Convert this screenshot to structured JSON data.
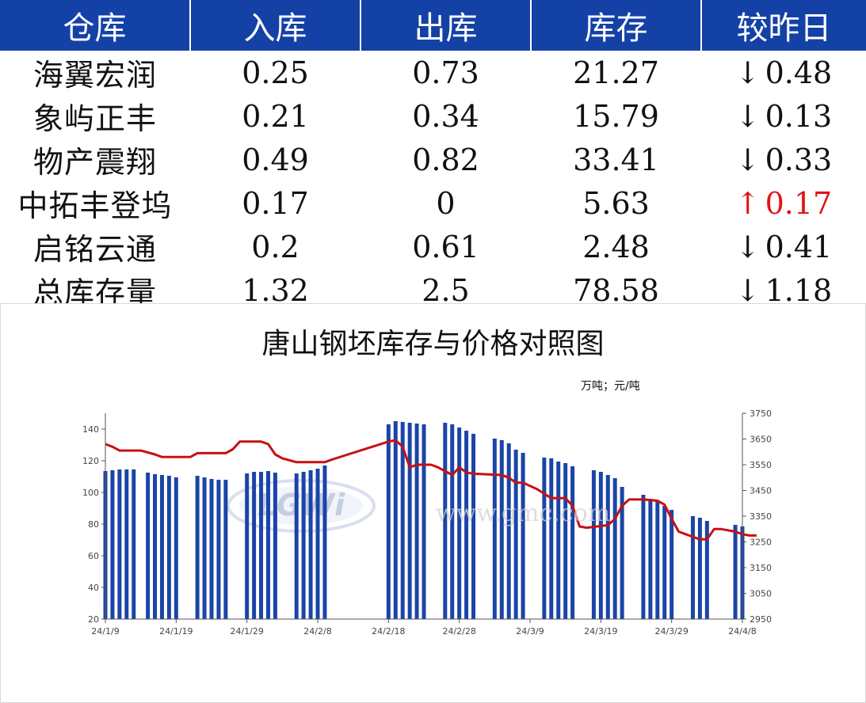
{
  "table": {
    "headers": [
      "仓库",
      "入库",
      "出库",
      "库存",
      "较昨日"
    ],
    "rows": [
      {
        "name": "海翼宏润",
        "in": "0.25",
        "out": "0.73",
        "stock": "21.27",
        "arrow": "↓",
        "change": "0.48",
        "dir": "down"
      },
      {
        "name": "象屿正丰",
        "in": "0.21",
        "out": "0.34",
        "stock": "15.79",
        "arrow": "↓",
        "change": "0.13",
        "dir": "down"
      },
      {
        "name": "物产震翔",
        "in": "0.49",
        "out": "0.82",
        "stock": "33.41",
        "arrow": "↓",
        "change": "0.33",
        "dir": "down"
      },
      {
        "name": "中拓丰登坞",
        "in": "0.17",
        "out": "0",
        "stock": "5.63",
        "arrow": "↑",
        "change": "0.17",
        "dir": "up"
      },
      {
        "name": "启铭云通",
        "in": "0.2",
        "out": "0.61",
        "stock": "2.48",
        "arrow": "↓",
        "change": "0.41",
        "dir": "down"
      },
      {
        "name": "总库存量",
        "in": "1.32",
        "out": "2.5",
        "stock": "78.58",
        "arrow": "↓",
        "change": "1.18",
        "dir": "down"
      }
    ]
  },
  "colors": {
    "header_bg": "#1441a6",
    "bar": "#1a44a8",
    "line": "#c81010",
    "down": "#12a04a",
    "up": "#e01414"
  },
  "chart_data": {
    "type": "bar+line",
    "title": "唐山钢坯库存与价格对照图",
    "unit_label": "万吨；元/吨",
    "x_ticks": [
      "24/1/9",
      "24/1/19",
      "24/1/29",
      "24/2/8",
      "24/2/18",
      "24/2/28",
      "24/3/9",
      "24/3/19",
      "24/3/29",
      "24/4/8"
    ],
    "x_start": "2024-01-09",
    "x_end": "2024-04-08",
    "y_left_ticks": [
      20,
      40,
      60,
      80,
      100,
      120,
      140
    ],
    "y_left_range": [
      20,
      150
    ],
    "y_right_ticks": [
      2950,
      3050,
      3150,
      3250,
      3350,
      3450,
      3550,
      3650,
      3750
    ],
    "y_right_range": [
      2950,
      3750
    ],
    "bars": {
      "name": "库存",
      "dates": [
        "2024-01-09",
        "2024-01-10",
        "2024-01-11",
        "2024-01-12",
        "2024-01-13",
        "2024-01-15",
        "2024-01-16",
        "2024-01-17",
        "2024-01-18",
        "2024-01-19",
        "2024-01-22",
        "2024-01-23",
        "2024-01-24",
        "2024-01-25",
        "2024-01-26",
        "2024-01-29",
        "2024-01-30",
        "2024-01-31",
        "2024-02-01",
        "2024-02-02",
        "2024-02-05",
        "2024-02-06",
        "2024-02-07",
        "2024-02-08",
        "2024-02-09",
        "2024-02-18",
        "2024-02-19",
        "2024-02-20",
        "2024-02-21",
        "2024-02-22",
        "2024-02-23",
        "2024-02-26",
        "2024-02-27",
        "2024-02-28",
        "2024-02-29",
        "2024-03-01",
        "2024-03-04",
        "2024-03-05",
        "2024-03-06",
        "2024-03-07",
        "2024-03-08",
        "2024-03-11",
        "2024-03-12",
        "2024-03-13",
        "2024-03-14",
        "2024-03-15",
        "2024-03-18",
        "2024-03-19",
        "2024-03-20",
        "2024-03-21",
        "2024-03-22",
        "2024-03-25",
        "2024-03-26",
        "2024-03-27",
        "2024-03-28",
        "2024-03-29",
        "2024-04-01",
        "2024-04-02",
        "2024-04-03",
        "2024-04-07",
        "2024-04-08"
      ],
      "values": [
        113.5,
        114,
        114.5,
        114.5,
        114.5,
        112.5,
        111.5,
        111,
        110.5,
        109.5,
        110.5,
        109.5,
        108.5,
        108,
        108,
        112,
        113,
        113,
        113.5,
        112.5,
        112,
        113,
        114,
        115,
        117,
        143,
        145,
        144.5,
        144,
        143.5,
        143,
        144,
        143,
        141,
        139,
        137,
        134,
        133,
        131,
        127,
        125,
        122,
        121.5,
        119.5,
        118.5,
        116.5,
        114,
        113,
        111,
        109,
        103.5,
        98.5,
        96,
        94,
        91.5,
        89,
        85,
        84,
        82,
        79.5,
        78.5
      ]
    },
    "line": {
      "name": "价格",
      "points": [
        [
          "2024-01-09",
          3630
        ],
        [
          "2024-01-10",
          3620
        ],
        [
          "2024-01-11",
          3605
        ],
        [
          "2024-01-13",
          3605
        ],
        [
          "2024-01-14",
          3605
        ],
        [
          "2024-01-16",
          3590
        ],
        [
          "2024-01-17",
          3580
        ],
        [
          "2024-01-19",
          3580
        ],
        [
          "2024-01-21",
          3580
        ],
        [
          "2024-01-22",
          3595
        ],
        [
          "2024-01-24",
          3595
        ],
        [
          "2024-01-26",
          3595
        ],
        [
          "2024-01-27",
          3610
        ],
        [
          "2024-01-28",
          3640
        ],
        [
          "2024-01-29",
          3640
        ],
        [
          "2024-01-31",
          3640
        ],
        [
          "2024-02-01",
          3630
        ],
        [
          "2024-02-02",
          3590
        ],
        [
          "2024-02-03",
          3575
        ],
        [
          "2024-02-05",
          3560
        ],
        [
          "2024-02-06",
          3560
        ],
        [
          "2024-02-08",
          3560
        ],
        [
          "2024-02-09",
          3560
        ],
        [
          "2024-02-10",
          3570
        ],
        [
          "2024-02-18",
          3640
        ],
        [
          "2024-02-19",
          3645
        ],
        [
          "2024-02-20",
          3620
        ],
        [
          "2024-02-21",
          3540
        ],
        [
          "2024-02-22",
          3550
        ],
        [
          "2024-02-24",
          3550
        ],
        [
          "2024-02-25",
          3540
        ],
        [
          "2024-02-27",
          3510
        ],
        [
          "2024-02-28",
          3540
        ],
        [
          "2024-02-29",
          3520
        ],
        [
          "2024-03-01",
          3515
        ],
        [
          "2024-03-05",
          3510
        ],
        [
          "2024-03-06",
          3500
        ],
        [
          "2024-03-07",
          3480
        ],
        [
          "2024-03-08",
          3480
        ],
        [
          "2024-03-10",
          3455
        ],
        [
          "2024-03-12",
          3420
        ],
        [
          "2024-03-14",
          3420
        ],
        [
          "2024-03-15",
          3390
        ],
        [
          "2024-03-16",
          3310
        ],
        [
          "2024-03-17",
          3305
        ],
        [
          "2024-03-20",
          3315
        ],
        [
          "2024-03-21",
          3340
        ],
        [
          "2024-03-22",
          3390
        ],
        [
          "2024-03-23",
          3415
        ],
        [
          "2024-03-25",
          3415
        ],
        [
          "2024-03-27",
          3410
        ],
        [
          "2024-03-28",
          3395
        ],
        [
          "2024-03-29",
          3340
        ],
        [
          "2024-03-30",
          3290
        ],
        [
          "2024-03-31",
          3280
        ],
        [
          "2024-04-02",
          3260
        ],
        [
          "2024-04-03",
          3260
        ],
        [
          "2024-04-04",
          3300
        ],
        [
          "2024-04-05",
          3300
        ],
        [
          "2024-04-07",
          3290
        ],
        [
          "2024-04-08",
          3280
        ],
        [
          "2024-04-09",
          3275
        ],
        [
          "2024-04-10",
          3275
        ]
      ]
    }
  },
  "watermark": {
    "text": "www.gmc.com"
  }
}
